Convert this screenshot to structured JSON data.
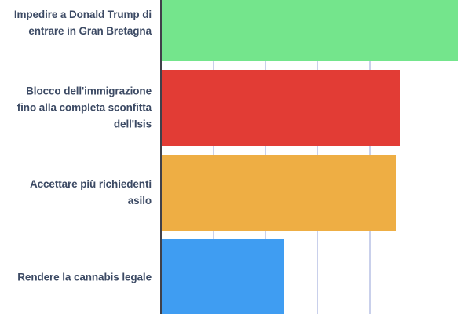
{
  "chart_data": {
    "type": "bar",
    "orientation": "horizontal",
    "title": "",
    "xlabel": "",
    "ylabel": "",
    "categories": [
      "Impedire a Donald Trump di\nentrare in Gran Bretagna",
      "Blocco dell'immigrazione\nfino alla completa sconfitta\ndell'Isis",
      "Accettare più richiedenti\nasilo",
      "Rendere la cannabis legale"
    ],
    "ids": [
      "trump-ban",
      "immigration-block",
      "asylum-seekers",
      "cannabis-legal"
    ],
    "values": [
      5.68,
      4.57,
      4.5,
      2.36
    ],
    "value_scale": "gridline intervals; axis tick labels not visible in this cropped view",
    "bar_colors": [
      "#74e58c",
      "#e23c35",
      "#eeae44",
      "#3f9df2"
    ],
    "xlim": [
      0,
      5.95
    ],
    "grid": true,
    "gridline_interval": 1,
    "legend": false,
    "crop_note": "top of first bar and bottom of last bar are cut off by the image edges"
  },
  "theme": {
    "background": "#ffffff",
    "label_text": "#3c4a64",
    "gridline": "#c9d0eb",
    "axis_line": "#40414a"
  }
}
